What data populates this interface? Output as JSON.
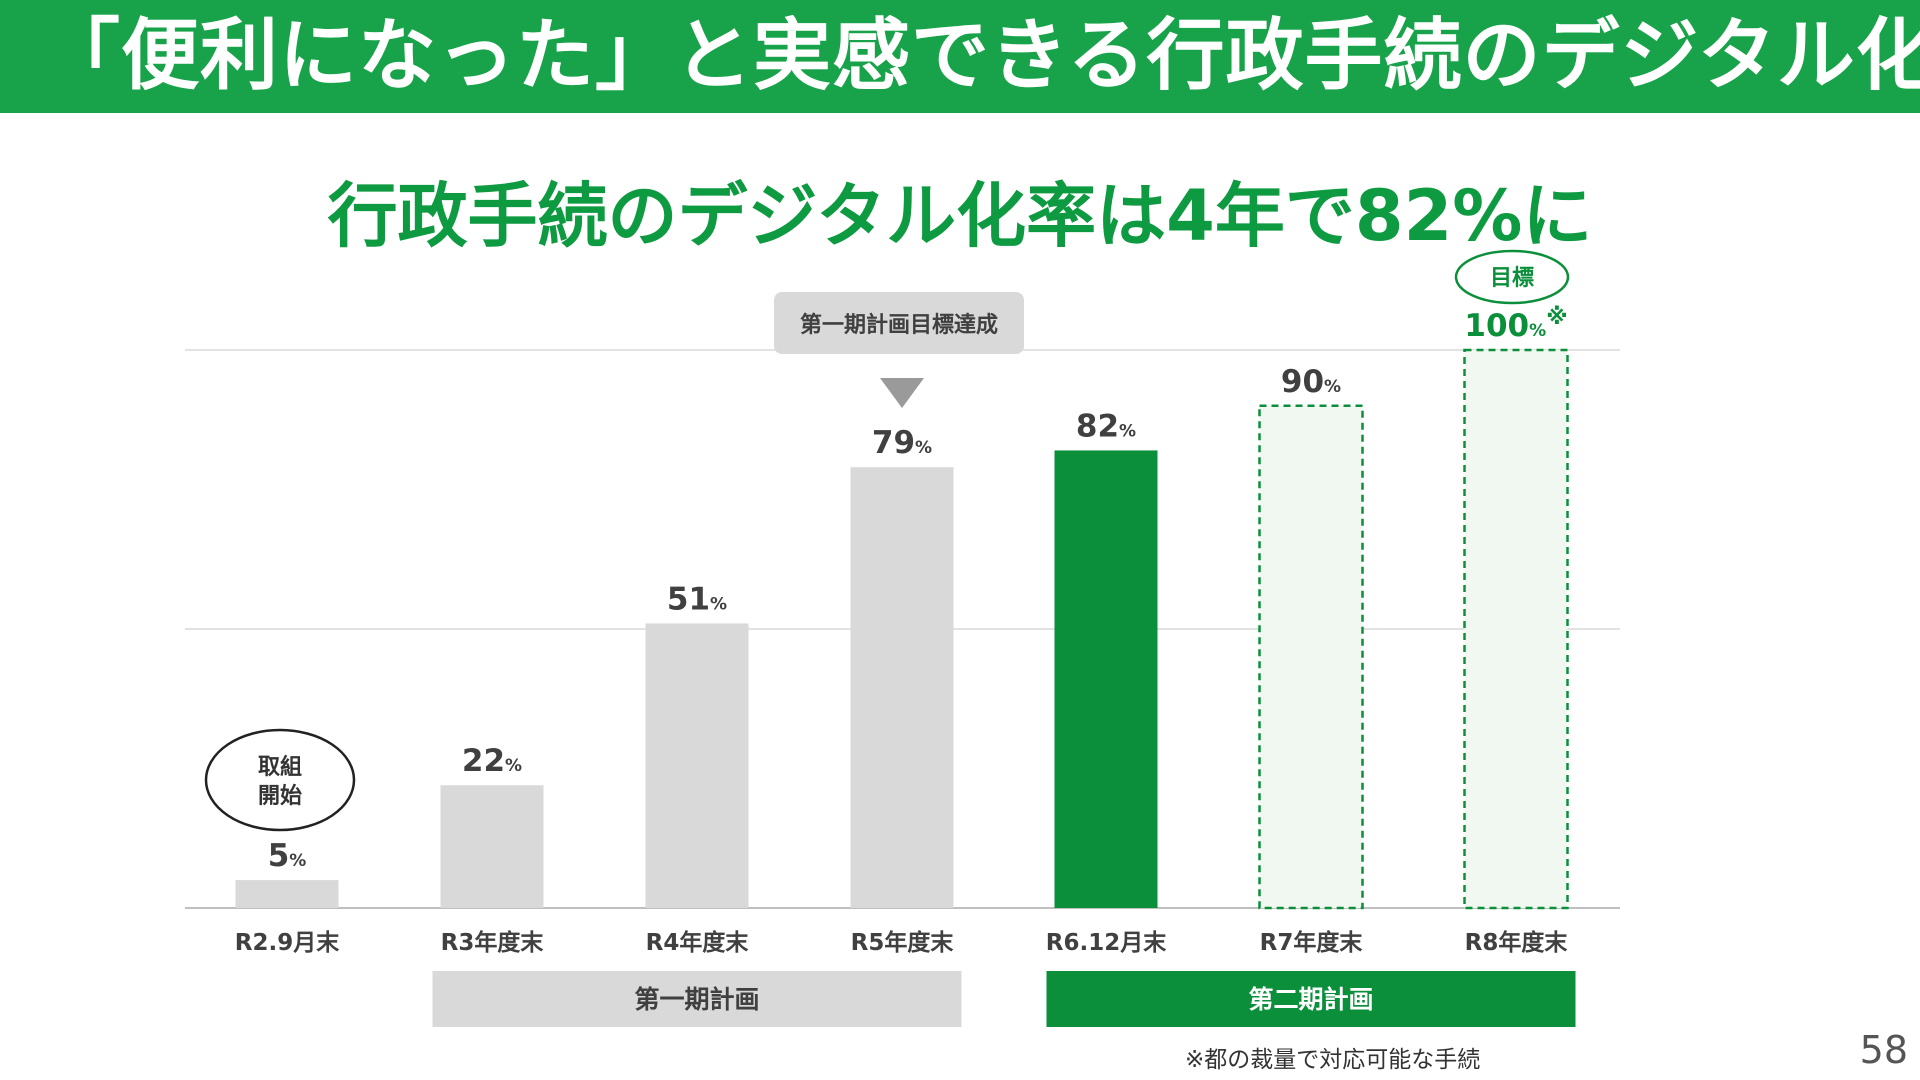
{
  "header": {
    "title": "「便利になった」と実感できる行政手続のデジタル化"
  },
  "subtitle": "行政手続のデジタル化率は4年で82%に",
  "colors": {
    "brand_green": "#18a34a",
    "bar_green": "#0b8f3a",
    "bar_gray": "#d9d9d9",
    "target_fill": "#f1f8f1"
  },
  "chart_data": {
    "type": "bar",
    "categories": [
      "R2.9月末",
      "R3年度末",
      "R4年度末",
      "R5年度末",
      "R6.12月末",
      "R7年度末",
      "R8年度末"
    ],
    "values": [
      5,
      22,
      51,
      79,
      82,
      90,
      100
    ],
    "value_labels": [
      "5",
      "22",
      "51",
      "79",
      "82",
      "90",
      "100"
    ],
    "unit": "%",
    "bar_kinds": [
      "actual",
      "actual",
      "actual",
      "actual",
      "current",
      "target",
      "target"
    ],
    "ylim": [
      0,
      100
    ],
    "gridlines": [
      0,
      50,
      100
    ],
    "title": "行政手続のデジタル化率は4年で82%に",
    "annotations": {
      "start_label": "取組\n開始",
      "milestone_label": "第一期計画目標達成",
      "target_label": "目標",
      "footnote_mark": "※"
    },
    "plan_groups": [
      {
        "label": "第一期計画",
        "from": 1,
        "to": 3,
        "style": "gray"
      },
      {
        "label": "第二期計画",
        "from": 4,
        "to": 6,
        "style": "green"
      }
    ]
  },
  "footnote": "※都の裁量で対応可能な手続",
  "page_number": "58"
}
